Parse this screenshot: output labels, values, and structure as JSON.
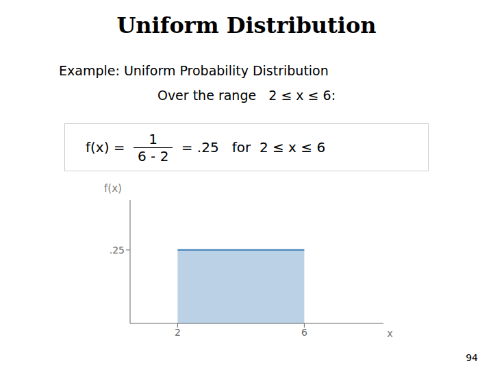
{
  "chart_data": {
    "type": "area",
    "title": "Uniform Distribution",
    "annotations": [
      "Example:",
      "Uniform Probability Distribution",
      "Over the range   2 ≤ x ≤ 6:",
      "f(x) = ",
      "1",
      "6 - 2",
      " = .25   for  2 ≤ x ≤ 6",
      "94"
    ],
    "xlabel": "x",
    "ylabel": "f(x)",
    "x": [
      2,
      6
    ],
    "values": [
      0.25,
      0.25
    ],
    "color": "#3a7ab8",
    "xlim": [
      0.5,
      8.5
    ],
    "xticks": [
      2,
      6
    ],
    "ylim": [
      0,
      0.42
    ],
    "yticks": [
      {
        "value": 0.25,
        "label": ".25"
      }
    ],
    "grid": false
  }
}
